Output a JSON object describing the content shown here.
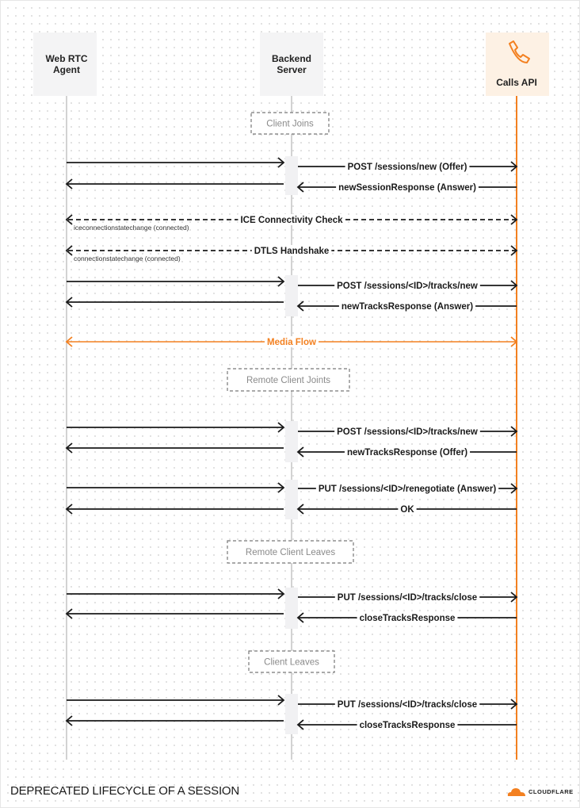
{
  "title": "DEPRECATED LIFECYCLE OF A SESSION",
  "brand": "CLOUDFLARE",
  "colors": {
    "accent": "#f38020",
    "line": "#c4c4c4",
    "arrow": "#1a1a1a"
  },
  "actors": [
    {
      "line1": "Web RTC",
      "line2": "Agent"
    },
    {
      "line1": "Backend",
      "line2": "Server"
    },
    {
      "line1": "Calls API",
      "line2": "",
      "icon": "phone-icon"
    }
  ],
  "groups": [
    "Client Joins",
    "Remote Client Joints",
    "Remote Client Leaves",
    "Client Leaves"
  ],
  "messages": [
    "POST /sessions/new (Offer)",
    "newSessionResponse (Answer)",
    "ICE Connectivity Check",
    "DTLS Handshake",
    "POST /sessions/<ID>/tracks/new",
    "newTracksResponse (Answer)",
    "Media Flow",
    "POST /sessions/<ID>/tracks/new",
    "newTracksResponse (Offer)",
    "PUT /sessions/<ID>/renegotiate (Answer)",
    "OK",
    "PUT /sessions/<ID>/tracks/close",
    "closeTracksResponse",
    "PUT /sessions/<ID>/tracks/close",
    "closeTracksResponse"
  ],
  "notes": [
    "iceconnectionstatechange (connected)",
    "connectionstatechange (connected)"
  ]
}
